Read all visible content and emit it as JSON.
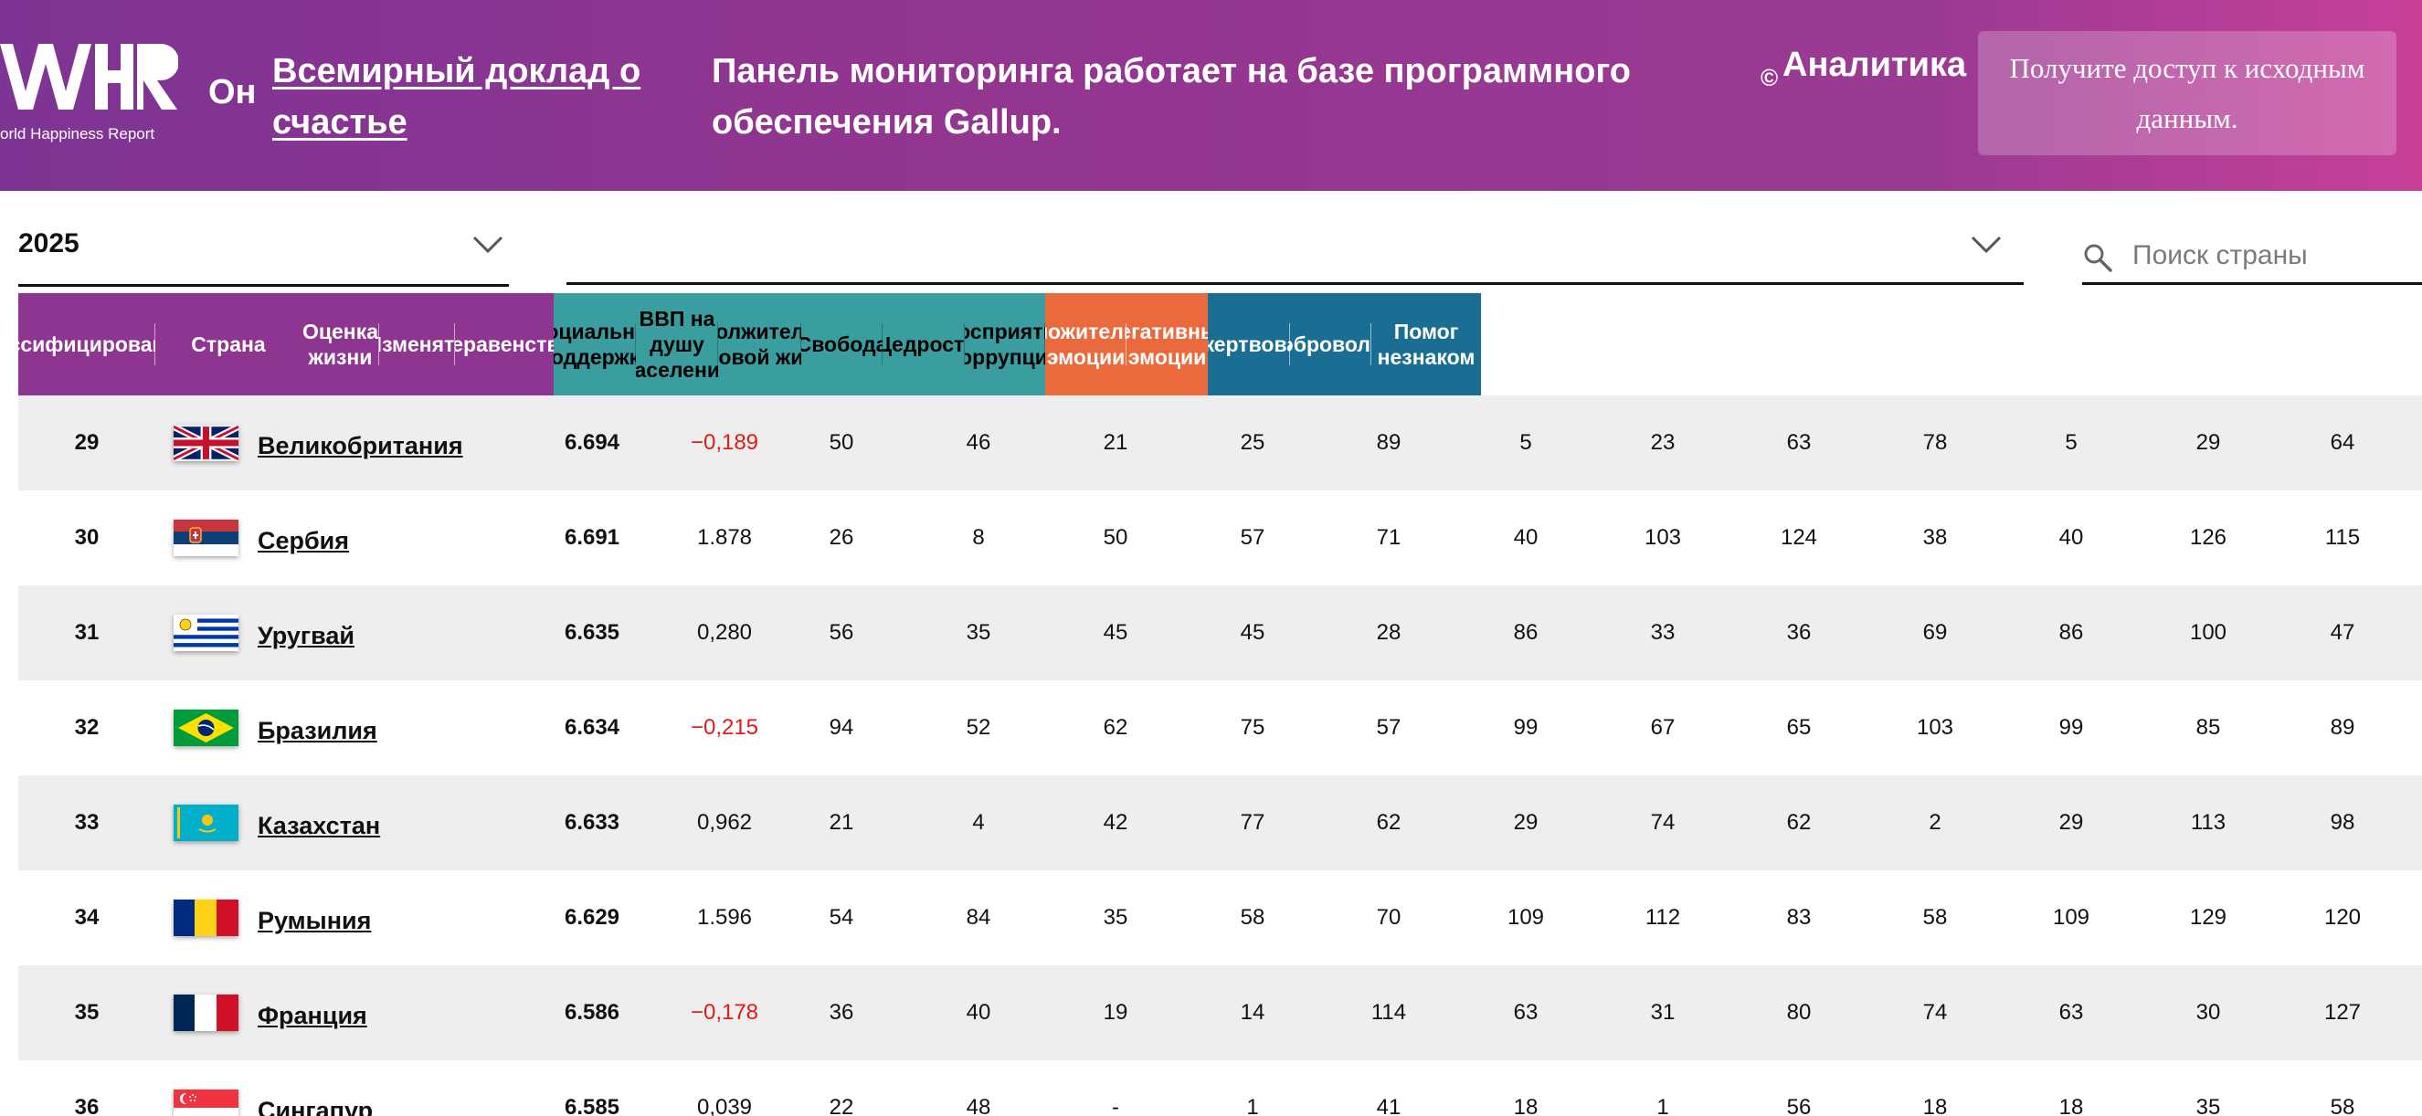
{
  "header": {
    "logo_sub": "orld Happiness Report",
    "about": "Он",
    "report_link": "Всемирный доклад о счастье",
    "powered_by": "Панель мониторинга работает на базе программного обеспечения Gallup.",
    "copyright_mark": "©",
    "analytics": "Аналитика",
    "access_button": "Получите доступ к исходным данным."
  },
  "filters": {
    "year": "2025",
    "region": "",
    "search_placeholder": "Поиск страны"
  },
  "columns": [
    {
      "label": "ссифицирован",
      "color": "#8e3592"
    },
    {
      "label": "Страна",
      "color": "#8e3592"
    },
    {
      "label": "Оценка\nжизни",
      "color": "#8e3592"
    },
    {
      "label": "Изменять",
      "color": "#8e3592"
    },
    {
      "label": "Неравенство",
      "color": "#8e3592"
    },
    {
      "label": "Социальная\nподдержка",
      "color": "#3a9ea1"
    },
    {
      "label": "ВВП на\nдушу\nнаселения",
      "color": "#3a9ea1"
    },
    {
      "label": "одолжительн\nоровой жизн",
      "color": "#3a9ea1"
    },
    {
      "label": "Свобода",
      "color": "#3a9ea1"
    },
    {
      "label": "Щедрость",
      "color": "#3a9ea1"
    },
    {
      "label": "Восприятие\nкоррупции",
      "color": "#3a9ea1"
    },
    {
      "label": "оложительн\nэмоции",
      "color": "#ea6a3d"
    },
    {
      "label": "Негативные\nэмоции",
      "color": "#ea6a3d"
    },
    {
      "label": "ожертвован",
      "color": "#1a6e93"
    },
    {
      "label": "Добровольн",
      "color": "#1a6e93"
    },
    {
      "label": "Помог\nнезнаком",
      "color": "#1a6e93"
    }
  ],
  "rows": [
    {
      "rank": "29",
      "country": "Великобритания",
      "flag": "uk",
      "score": "6.694",
      "change": "−0,189",
      "change_negative": true,
      "values": [
        "50",
        "46",
        "21",
        "25",
        "89",
        "5",
        "23",
        "63",
        "78",
        "5",
        "29",
        "64"
      ]
    },
    {
      "rank": "30",
      "country": "Сербия",
      "flag": "serbia",
      "score": "6.691",
      "change": "1.878",
      "change_negative": false,
      "values": [
        "26",
        "8",
        "50",
        "57",
        "71",
        "40",
        "103",
        "124",
        "38",
        "40",
        "126",
        "115"
      ]
    },
    {
      "rank": "31",
      "country": "Уругвай",
      "flag": "uruguay",
      "score": "6.635",
      "change": "0,280",
      "change_negative": false,
      "values": [
        "56",
        "35",
        "45",
        "45",
        "28",
        "86",
        "33",
        "36",
        "69",
        "86",
        "100",
        "47"
      ]
    },
    {
      "rank": "32",
      "country": "Бразилия",
      "flag": "brazil",
      "score": "6.634",
      "change": "−0,215",
      "change_negative": true,
      "values": [
        "94",
        "52",
        "62",
        "75",
        "57",
        "99",
        "67",
        "65",
        "103",
        "99",
        "85",
        "89"
      ]
    },
    {
      "rank": "33",
      "country": "Казахстан",
      "flag": "kazakhstan",
      "score": "6.633",
      "change": "0,962",
      "change_negative": false,
      "values": [
        "21",
        "4",
        "42",
        "77",
        "62",
        "29",
        "74",
        "62",
        "2",
        "29",
        "113",
        "98"
      ]
    },
    {
      "rank": "34",
      "country": "Румыния",
      "flag": "romania",
      "score": "6.629",
      "change": "1.596",
      "change_negative": false,
      "values": [
        "54",
        "84",
        "35",
        "58",
        "70",
        "109",
        "112",
        "83",
        "58",
        "109",
        "129",
        "120"
      ]
    },
    {
      "rank": "35",
      "country": "Франция",
      "flag": "france",
      "score": "6.586",
      "change": "−0,178",
      "change_negative": true,
      "values": [
        "36",
        "40",
        "19",
        "14",
        "114",
        "63",
        "31",
        "80",
        "74",
        "63",
        "30",
        "127"
      ]
    },
    {
      "rank": "36",
      "country": "Сингапур",
      "flag": "singapore",
      "score": "6.585",
      "change": "0,039",
      "change_negative": false,
      "values": [
        "22",
        "48",
        "-",
        "1",
        "41",
        "18",
        "1",
        "56",
        "18",
        "18",
        "35",
        "58"
      ]
    }
  ]
}
